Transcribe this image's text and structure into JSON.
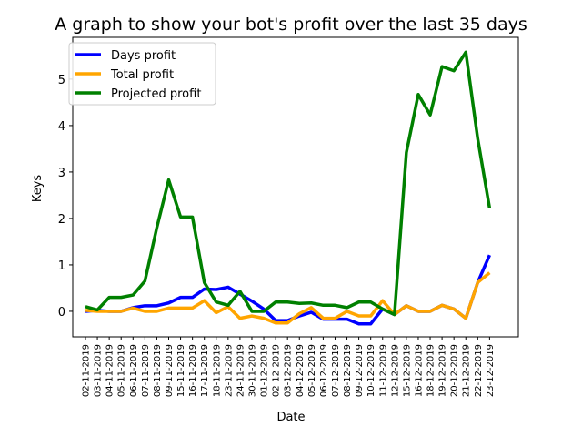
{
  "chart_data": {
    "type": "line",
    "title": "A graph to show your bot's profit over the last 35 days",
    "xlabel": "Date",
    "ylabel": "Keys",
    "ylim": [
      -0.55,
      5.9
    ],
    "yticks": [
      0,
      1,
      2,
      3,
      4,
      5
    ],
    "grid": false,
    "legend_position": "top-left",
    "categories": [
      "02-11-2019",
      "03-11-2019",
      "04-11-2019",
      "05-11-2019",
      "06-11-2019",
      "07-11-2019",
      "08-11-2019",
      "09-11-2019",
      "15-11-2019",
      "16-11-2019",
      "17-11-2019",
      "18-11-2019",
      "23-11-2019",
      "24-11-2019",
      "30-11-2019",
      "01-12-2019",
      "02-12-2019",
      "03-12-2019",
      "04-12-2019",
      "05-12-2019",
      "06-12-2019",
      "07-12-2019",
      "08-12-2019",
      "09-12-2019",
      "10-12-2019",
      "11-12-2019",
      "12-12-2019",
      "15-12-2019",
      "16-12-2019",
      "18-12-2019",
      "19-12-2019",
      "20-12-2019",
      "21-12-2019",
      "22-12-2019",
      "23-12-2019"
    ],
    "series": [
      {
        "name": "Days profit",
        "color": "#0000ff",
        "values": [
          0.0,
          0.02,
          0.0,
          0.0,
          0.08,
          0.12,
          0.12,
          0.18,
          0.3,
          0.3,
          0.48,
          0.47,
          0.52,
          0.37,
          0.22,
          0.05,
          -0.2,
          -0.2,
          -0.1,
          -0.02,
          -0.17,
          -0.17,
          -0.17,
          -0.27,
          -0.27,
          0.05,
          -0.07,
          0.12,
          0.0,
          0.0,
          0.13,
          0.05,
          -0.15,
          0.62,
          1.21
        ]
      },
      {
        "name": "Total profit",
        "color": "#ffa500",
        "values": [
          0.02,
          0.0,
          0.0,
          0.0,
          0.07,
          0.0,
          0.0,
          0.07,
          0.07,
          0.07,
          0.23,
          -0.03,
          0.1,
          -0.15,
          -0.1,
          -0.15,
          -0.25,
          -0.25,
          -0.05,
          0.08,
          -0.15,
          -0.15,
          0.0,
          -0.1,
          -0.1,
          0.23,
          -0.07,
          0.12,
          0.0,
          0.0,
          0.13,
          0.05,
          -0.15,
          0.62,
          0.83
        ]
      },
      {
        "name": "Projected profit",
        "color": "#008000",
        "values": [
          0.1,
          0.03,
          0.3,
          0.3,
          0.35,
          0.65,
          1.8,
          2.83,
          2.03,
          2.03,
          0.62,
          0.2,
          0.13,
          0.43,
          0.0,
          0.0,
          0.2,
          0.2,
          0.17,
          0.18,
          0.13,
          0.13,
          0.08,
          0.2,
          0.2,
          0.05,
          -0.07,
          3.42,
          4.67,
          4.23,
          5.27,
          5.18,
          5.58,
          3.72,
          2.22
        ]
      }
    ]
  }
}
